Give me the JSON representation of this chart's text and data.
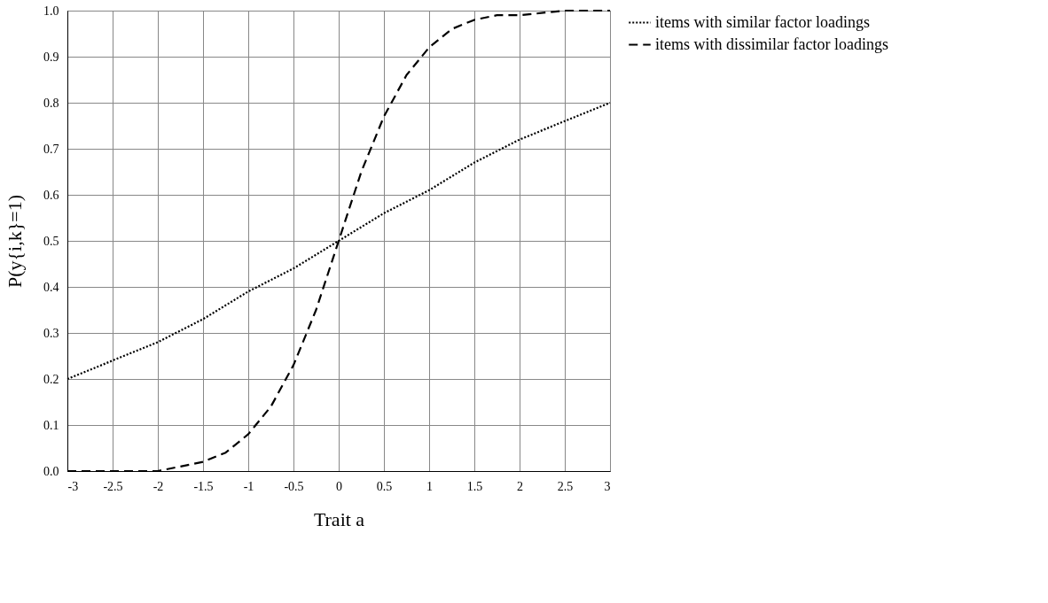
{
  "chart_data": {
    "type": "line",
    "xlabel": "Trait a",
    "ylabel": "P(y{i,k}=1)",
    "xlim": [
      -3,
      3
    ],
    "xticks": [
      -3,
      -2.5,
      -2,
      -1.5,
      -1,
      -0.5,
      0,
      0.5,
      1,
      1.5,
      2,
      2.5,
      3
    ],
    "ylim": [
      0,
      1
    ],
    "yticks": [
      {
        "value": 0,
        "label": "0.0"
      },
      {
        "value": 0.1,
        "label": "0.1"
      },
      {
        "value": 0.2,
        "label": "0.2"
      },
      {
        "value": 0.3,
        "label": "0.3"
      },
      {
        "value": 0.4,
        "label": "0.4"
      },
      {
        "value": 0.5,
        "label": "0.5"
      },
      {
        "value": 0.6,
        "label": "0.6"
      },
      {
        "value": 0.7,
        "label": "0.7"
      },
      {
        "value": 0.8,
        "label": "0.8"
      },
      {
        "value": 0.9,
        "label": "0.9"
      },
      {
        "value": 1,
        "label": "1.0"
      }
    ],
    "grid": true,
    "legend": "right",
    "marker": "none",
    "series": [
      {
        "name": "items with similar factor loadings",
        "color": "#000000",
        "line_style": "dotted",
        "x": [
          -3,
          -2.5,
          -2,
          -1.5,
          -1,
          -0.5,
          0,
          0.5,
          1,
          1.5,
          2,
          2.5,
          3
        ],
        "values": [
          0.2,
          0.24,
          0.28,
          0.33,
          0.39,
          0.44,
          0.5,
          0.56,
          0.61,
          0.67,
          0.72,
          0.76,
          0.8
        ]
      },
      {
        "name": "items with dissimilar factor loadings",
        "color": "#000000",
        "line_style": "dashed",
        "x": [
          -3,
          -2.5,
          -2,
          -1.75,
          -1.5,
          -1.25,
          -1,
          -0.75,
          -0.5,
          -0.25,
          0,
          0.25,
          0.5,
          0.75,
          1,
          1.25,
          1.5,
          1.75,
          2,
          2.5,
          3
        ],
        "values": [
          0.0,
          0.0,
          0.0,
          0.01,
          0.02,
          0.04,
          0.08,
          0.14,
          0.23,
          0.35,
          0.5,
          0.65,
          0.77,
          0.86,
          0.92,
          0.96,
          0.98,
          0.99,
          0.99,
          1.0,
          1.0
        ]
      }
    ]
  }
}
